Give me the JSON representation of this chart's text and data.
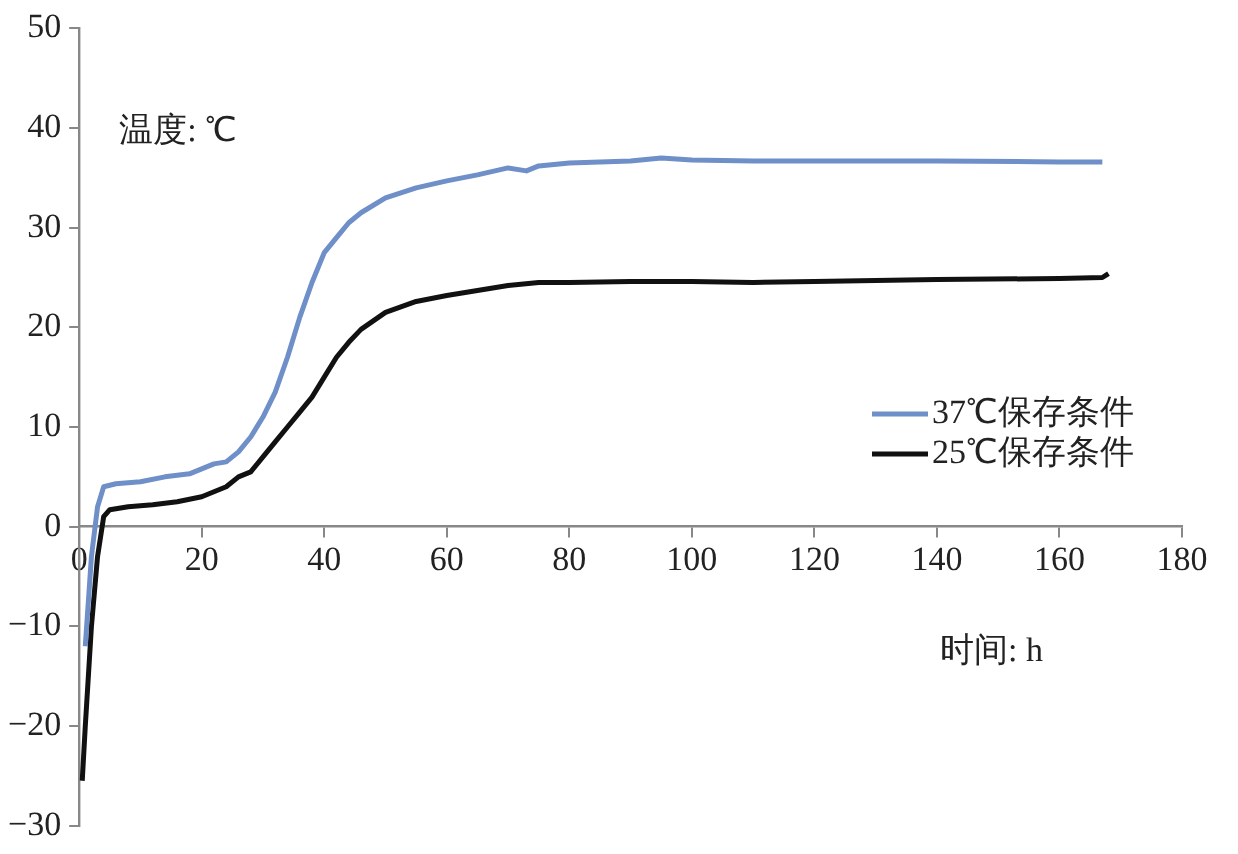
{
  "chart_data": {
    "type": "line",
    "xlabel": "时间: h",
    "ylabel": "温度: ℃",
    "xlim": [
      0,
      180
    ],
    "xticks": [
      0,
      20,
      40,
      60,
      80,
      100,
      120,
      140,
      160,
      180
    ],
    "ylim": [
      -30,
      50
    ],
    "yticks": [
      -30,
      -20,
      -10,
      0,
      10,
      20,
      30,
      40,
      50
    ],
    "grid": false,
    "legend": "right",
    "marker": "none",
    "line_style": "solid",
    "series": [
      {
        "name": "37℃保存条件",
        "color": "#6f8fc8",
        "x": [
          1,
          2,
          3,
          4,
          6,
          10,
          14,
          18,
          20,
          22,
          24,
          26,
          28,
          30,
          32,
          34,
          36,
          38,
          40,
          42,
          44,
          46,
          50,
          55,
          60,
          65,
          70,
          73,
          75,
          80,
          90,
          95,
          100,
          110,
          120,
          140,
          160,
          167
        ],
        "values": [
          -12,
          -3,
          2,
          4,
          4.3,
          4.5,
          5,
          5.3,
          5.8,
          6.3,
          6.5,
          7.5,
          9,
          11,
          13.5,
          17,
          21,
          24.5,
          27.5,
          29,
          30.5,
          31.5,
          33,
          34,
          34.7,
          35.3,
          36,
          35.7,
          36.2,
          36.5,
          36.7,
          37,
          36.8,
          36.7,
          36.7,
          36.7,
          36.6,
          36.6
        ]
      },
      {
        "name": "25℃保存条件",
        "color": "#111111",
        "x": [
          0.5,
          1,
          2,
          3,
          4,
          5,
          8,
          12,
          16,
          20,
          22,
          24,
          26,
          28,
          30,
          32,
          34,
          36,
          38,
          40,
          42,
          44,
          46,
          50,
          55,
          60,
          65,
          70,
          75,
          80,
          90,
          100,
          110,
          120,
          140,
          160,
          167,
          168
        ],
        "values": [
          -25.5,
          -20,
          -10,
          -3,
          1,
          1.7,
          2,
          2.2,
          2.5,
          3,
          3.5,
          4,
          5,
          5.5,
          7,
          8.5,
          10,
          11.5,
          13,
          15,
          17,
          18.5,
          19.8,
          21.5,
          22.6,
          23.2,
          23.7,
          24.2,
          24.5,
          24.5,
          24.6,
          24.6,
          24.5,
          24.6,
          24.8,
          24.9,
          25,
          25.4
        ]
      }
    ]
  }
}
